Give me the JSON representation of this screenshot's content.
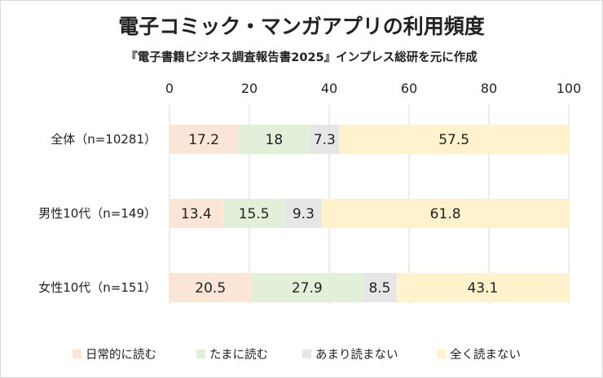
{
  "chart_data": {
    "type": "bar",
    "orientation": "horizontal",
    "stacked": true,
    "title": "電子コミック・マンガアプリの利用頻度",
    "subtitle": "『電子書籍ビジネス調査報告書2025』インプレス総研を元に作成",
    "xlim": [
      0,
      100
    ],
    "x_ticks": [
      0,
      20,
      40,
      60,
      80,
      100
    ],
    "x_axis_position": "top",
    "grid": true,
    "legend_position": "bottom",
    "categories": [
      "全体（n=10281）",
      "男性10代（n=149）",
      "女性10代（n=151）"
    ],
    "series": [
      {
        "name": "日常的に読む",
        "color": "#fbe5d6",
        "values": [
          17.2,
          13.4,
          20.5
        ]
      },
      {
        "name": "たまに読む",
        "color": "#e2f0d9",
        "values": [
          18,
          15.5,
          27.9
        ]
      },
      {
        "name": "あまり読まない",
        "color": "#e7e6e6",
        "values": [
          7.3,
          9.3,
          8.5
        ]
      },
      {
        "name": "全く読まない",
        "color": "#fff2cc",
        "values": [
          57.5,
          61.8,
          43.1
        ]
      }
    ]
  }
}
